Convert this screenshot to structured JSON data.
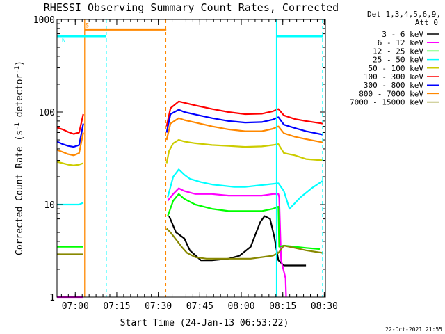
{
  "chart_data": {
    "type": "line",
    "title": "RHESSI Observing Summary Count Rates, Corrected",
    "xlabel": "Start Time (24-Jan-13 06:53:22)",
    "ylabel_main": "Corrected Count Rate (s",
    "ylabel_sup1": "-1",
    "ylabel_mid": " detector",
    "ylabel_sup2": "-1",
    "ylabel_end": ")",
    "yscale": "log",
    "ylim": [
      1,
      1000
    ],
    "xlim_minutes": [
      0,
      97
    ],
    "x_ticks": [
      {
        "label": "07:00",
        "minute": 6.6
      },
      {
        "label": "07:15",
        "minute": 21.6
      },
      {
        "label": "07:30",
        "minute": 36.6
      },
      {
        "label": "07:45",
        "minute": 51.6
      },
      {
        "label": "08:00",
        "minute": 66.6
      },
      {
        "label": "08:15",
        "minute": 81.6
      },
      {
        "label": "08:30",
        "minute": 96.6
      }
    ],
    "y_ticks": [
      {
        "label": "1",
        "value": 1
      },
      {
        "label": "10",
        "value": 10
      },
      {
        "label": "100",
        "value": 100
      },
      {
        "label": "1000",
        "value": 1000
      }
    ],
    "legend_header": [
      "Det 1,3,4,5,6,9,",
      "Att 0"
    ],
    "series": [
      {
        "name": "3 - 6 keV",
        "color": "#000000",
        "x": [
          0,
          9.5,
          9.8,
          39.2,
          40.5,
          43,
          46,
          48,
          52,
          56,
          62,
          66,
          70,
          72,
          73.5,
          75,
          77,
          78.5,
          80,
          82,
          90
        ],
        "y": [
          null,
          null,
          null,
          null,
          7.5,
          5,
          4.3,
          3.2,
          2.5,
          2.5,
          2.6,
          2.8,
          3.5,
          5,
          6.5,
          7.5,
          7,
          4.5,
          2.5,
          2.2,
          2.2
        ]
      },
      {
        "name": "6 - 12 keV",
        "color": "#ff00ff",
        "x": [
          0,
          9.5,
          9.8,
          39.2,
          40,
          42,
          44,
          46,
          50,
          56,
          62,
          68,
          74,
          78,
          80,
          80.3,
          81,
          82.6,
          82.8
        ],
        "y": [
          1,
          1,
          null,
          null,
          11,
          13,
          15,
          14,
          13,
          13,
          12.5,
          12.5,
          12.5,
          13,
          13,
          12,
          2.5,
          1.6,
          1
        ]
      },
      {
        "name": "12 - 25 keV",
        "color": "#00ff00",
        "x": [
          0,
          9.5,
          9.8,
          39.2,
          40,
          42,
          44,
          46,
          50,
          56,
          62,
          68,
          74,
          78,
          80,
          80.3,
          82,
          86,
          90,
          95
        ],
        "y": [
          3.5,
          3.5,
          null,
          null,
          7.5,
          11,
          13,
          11.5,
          10,
          9,
          8.5,
          8.5,
          8.5,
          9,
          9.5,
          3.5,
          3.6,
          3.5,
          3.4,
          3.3
        ]
      },
      {
        "name": "25 - 50 keV",
        "color": "#00ffff",
        "x": [
          0,
          2,
          4,
          6,
          8,
          9.5,
          9.8,
          39.2,
          40,
          42,
          44,
          46,
          48,
          52,
          56,
          60,
          64,
          68,
          72,
          76,
          80,
          82,
          84,
          88,
          92,
          96
        ],
        "y": [
          10,
          10,
          10,
          10,
          10,
          10.5,
          null,
          null,
          12,
          20,
          24,
          21,
          19,
          17.5,
          16.5,
          16,
          15.5,
          15.5,
          16,
          16.5,
          17,
          14,
          9,
          12,
          15,
          18
        ]
      },
      {
        "name": "50 - 100 keV",
        "color": "#cccc00",
        "x": [
          0,
          2,
          4,
          6,
          8,
          9.5,
          9.8,
          39.2,
          39.6,
          40.5,
          42,
          44,
          46,
          50,
          56,
          62,
          68,
          74,
          78,
          80,
          82,
          86,
          90,
          96
        ],
        "y": [
          29,
          28,
          27,
          26.5,
          27,
          28,
          null,
          null,
          28,
          38,
          46,
          50,
          48,
          46,
          44,
          43,
          42,
          42.5,
          44,
          45,
          36,
          34,
          31,
          30
        ]
      },
      {
        "name": "100 - 300 keV",
        "color": "#ff0000",
        "x": [
          0,
          2,
          4,
          6,
          8,
          9.5,
          9.8,
          39.2,
          39.6,
          41,
          44,
          46,
          50,
          56,
          62,
          68,
          74,
          78,
          80,
          82,
          86,
          90,
          96
        ],
        "y": [
          68,
          65,
          61,
          58,
          60,
          95,
          null,
          null,
          70,
          110,
          130,
          126,
          118,
          108,
          100,
          95,
          96,
          102,
          108,
          92,
          84,
          80,
          75
        ]
      },
      {
        "name": "300 - 800 keV",
        "color": "#0000ff",
        "x": [
          0,
          2,
          4,
          6,
          8,
          9.5,
          9.8,
          39.2,
          39.6,
          41,
          44,
          46,
          50,
          56,
          62,
          68,
          74,
          78,
          80,
          82,
          86,
          90,
          96
        ],
        "y": [
          48,
          45,
          43,
          42,
          44,
          75,
          null,
          null,
          60,
          95,
          106,
          100,
          94,
          86,
          80,
          77,
          78,
          83,
          88,
          73,
          67,
          62,
          57
        ]
      },
      {
        "name": "800 - 7000 keV",
        "color": "#ff8800",
        "x": [
          0,
          2,
          4,
          6,
          8,
          9.5,
          9.8,
          39.2,
          39.6,
          41,
          44,
          46,
          50,
          56,
          62,
          68,
          74,
          78,
          80,
          82,
          86,
          90,
          96
        ],
        "y": [
          39,
          37,
          35,
          34,
          36,
          60,
          null,
          null,
          50,
          75,
          86,
          82,
          77,
          70,
          65,
          62,
          62,
          66,
          70,
          59,
          54,
          51,
          47
        ]
      },
      {
        "name": "7000 - 15000 keV",
        "color": "#888800",
        "x": [
          0,
          9.5,
          9.8,
          39.2,
          39.6,
          41,
          43,
          45,
          47,
          50,
          54,
          58,
          62,
          66,
          70,
          74,
          78,
          80,
          82,
          86,
          90,
          96
        ],
        "y": [
          2.9,
          2.9,
          null,
          null,
          5.5,
          5,
          4.2,
          3.5,
          3,
          2.7,
          2.6,
          2.6,
          2.6,
          2.6,
          2.6,
          2.7,
          2.8,
          3,
          3.6,
          3.4,
          3.2,
          3
        ]
      }
    ],
    "state_markers": [
      {
        "label": "S",
        "color": "#ff8800",
        "x_start": 10,
        "x_end": 39.5,
        "y": 780
      },
      {
        "label": "N",
        "color": "#00ffff",
        "x_start": 0,
        "x_end": 17.8,
        "y": 660
      },
      {
        "label": "",
        "color": "#00ffff",
        "x_start": 79.3,
        "x_end": 96,
        "y": 660
      }
    ],
    "vertical_lines": [
      {
        "x": 10,
        "color": "#ff8800",
        "style": "solid"
      },
      {
        "x": 17.8,
        "color": "#00ffff",
        "style": "dashed"
      },
      {
        "x": 39.3,
        "color": "#ff8800",
        "style": "dashed"
      },
      {
        "x": 79.3,
        "color": "#00ffff",
        "style": "solid"
      },
      {
        "x": 96,
        "color": "#00ffff",
        "style": "dashed"
      }
    ],
    "footer_timestamp": "22-Oct-2021 21:55"
  }
}
